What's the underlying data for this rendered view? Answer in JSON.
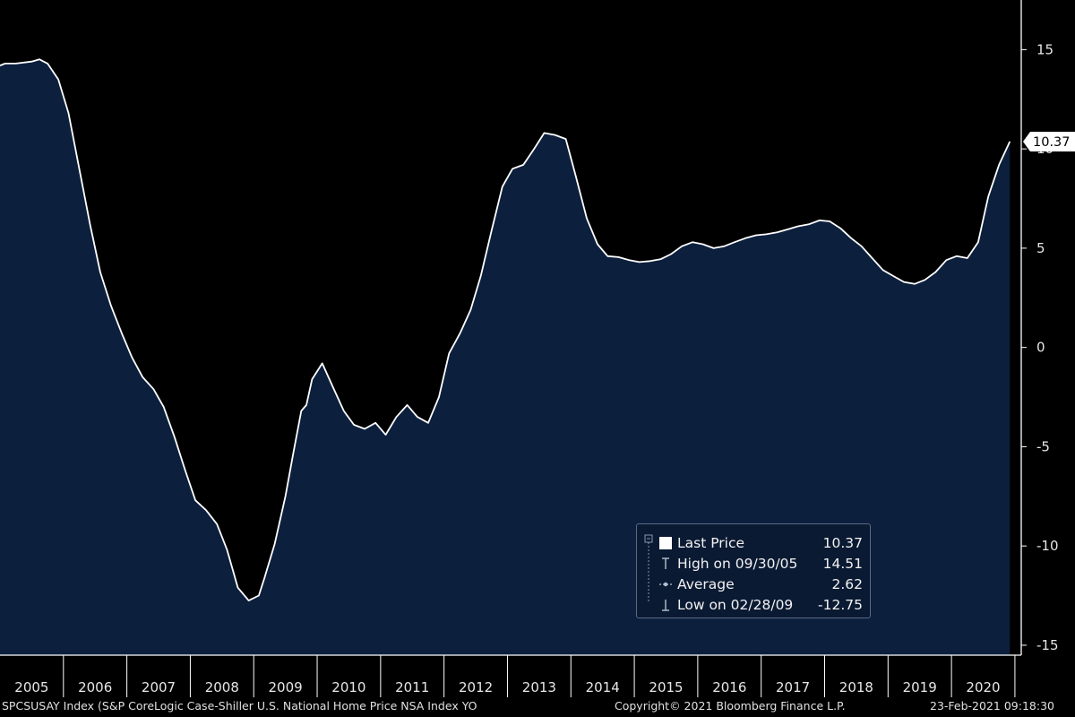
{
  "chart_data": {
    "type": "area",
    "ticker": "SPCSUSAY Index (S&P CoreLogic Case-Shiller U.S. National Home Price NSA Index YO",
    "x_tick_labels": [
      "2005",
      "2006",
      "2007",
      "2008",
      "2009",
      "2010",
      "2011",
      "2012",
      "2013",
      "2014",
      "2015",
      "2016",
      "2017",
      "2018",
      "2019",
      "2020"
    ],
    "y_tick_labels": [
      "15",
      "10",
      "5",
      "0",
      "-5",
      "-10",
      "-15"
    ],
    "y_ticks": [
      15,
      10,
      5,
      0,
      -5,
      -10,
      -15
    ],
    "ylim": [
      -15.5,
      17.5
    ],
    "xlim": [
      2005.0,
      2021.1
    ],
    "grid": false,
    "series": [
      {
        "x": [
          2005.0,
          2005.08,
          2005.25,
          2005.5,
          2005.62,
          2005.75,
          2005.92,
          2006.08,
          2006.25,
          2006.42,
          2006.58,
          2006.75,
          2006.92,
          2007.08,
          2007.25,
          2007.42,
          2007.58,
          2007.75,
          2007.92,
          2008.08,
          2008.25,
          2008.42,
          2008.58,
          2008.75,
          2008.92,
          2009.08,
          2009.17,
          2009.33,
          2009.5,
          2009.62,
          2009.75,
          2009.83,
          2009.92,
          2010.08,
          2010.25,
          2010.42,
          2010.58,
          2010.75,
          2010.92,
          2011.08,
          2011.25,
          2011.42,
          2011.58,
          2011.75,
          2011.92,
          2012.08,
          2012.25,
          2012.42,
          2012.58,
          2012.75,
          2012.92,
          2013.08,
          2013.25,
          2013.42,
          2013.58,
          2013.75,
          2013.92,
          2014.08,
          2014.25,
          2014.42,
          2014.58,
          2014.75,
          2014.92,
          2015.08,
          2015.25,
          2015.42,
          2015.58,
          2015.75,
          2015.92,
          2016.08,
          2016.25,
          2016.42,
          2016.58,
          2016.75,
          2016.92,
          2017.08,
          2017.25,
          2017.42,
          2017.58,
          2017.75,
          2017.92,
          2018.08,
          2018.25,
          2018.42,
          2018.58,
          2018.75,
          2018.92,
          2019.08,
          2019.25,
          2019.42,
          2019.58,
          2019.75,
          2019.92,
          2020.08,
          2020.25,
          2020.42,
          2020.58,
          2020.75,
          2020.92
        ],
        "y": [
          14.2,
          14.3,
          14.3,
          14.4,
          14.51,
          14.3,
          13.5,
          11.8,
          9.0,
          6.2,
          3.8,
          2.1,
          0.7,
          -0.5,
          -1.5,
          -2.1,
          -3.0,
          -4.5,
          -6.2,
          -7.7,
          -8.2,
          -8.9,
          -10.2,
          -12.1,
          -12.75,
          -12.5,
          -11.6,
          -9.9,
          -7.5,
          -5.4,
          -3.2,
          -2.9,
          -1.6,
          -0.8,
          -2.0,
          -3.2,
          -3.9,
          -4.1,
          -3.8,
          -4.4,
          -3.5,
          -2.9,
          -3.5,
          -3.8,
          -2.5,
          -0.3,
          0.7,
          1.9,
          3.6,
          5.9,
          8.1,
          9.0,
          9.2,
          10.0,
          10.8,
          10.7,
          10.5,
          8.6,
          6.5,
          5.2,
          4.6,
          4.55,
          4.4,
          4.3,
          4.35,
          4.45,
          4.7,
          5.1,
          5.3,
          5.2,
          5.0,
          5.1,
          5.3,
          5.5,
          5.65,
          5.7,
          5.8,
          5.95,
          6.1,
          6.2,
          6.4,
          6.35,
          6.0,
          5.5,
          5.1,
          4.5,
          3.9,
          3.6,
          3.3,
          3.2,
          3.4,
          3.8,
          4.4,
          4.6,
          4.5,
          5.3,
          7.6,
          9.2,
          10.37
        ]
      }
    ],
    "legend": {
      "placement": "bottom-right",
      "rows": [
        {
          "label": "Last Price",
          "value": "10.37"
        },
        {
          "label": "High on 09/30/05",
          "value": "14.51"
        },
        {
          "label": "Average",
          "value": "2.62"
        },
        {
          "label": "Low on 02/28/09",
          "value": "-12.75"
        }
      ]
    },
    "last_price_label": "10.37",
    "colors": {
      "fill": "#0c1f3d",
      "line": "#ffffff",
      "background": "#000000",
      "axis": "#ffffff"
    }
  },
  "footer": {
    "ticker_text": "SPCSUSAY Index (S&P CoreLogic Case-Shiller U.S. National Home Price NSA Index YO",
    "copyright": "Copyright© 2021 Bloomberg Finance L.P.",
    "timestamp": "23-Feb-2021 09:18:30"
  }
}
